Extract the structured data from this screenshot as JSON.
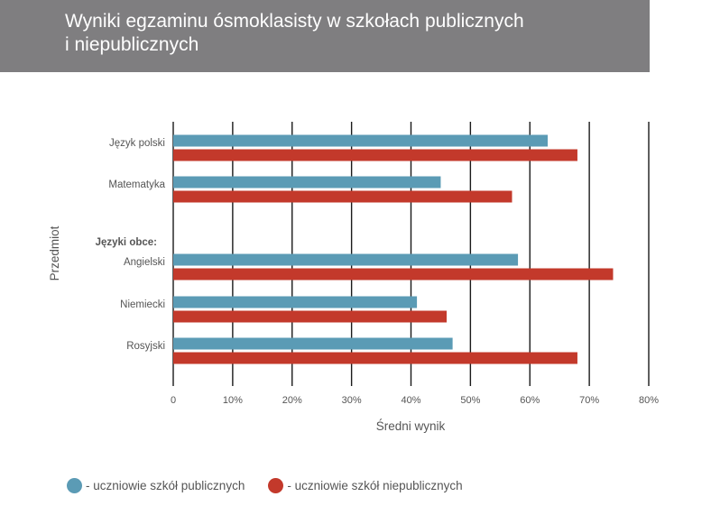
{
  "header": {
    "title_line1": "Wyniki egzaminu ósmoklasisty w szkołach publicznych",
    "title_line2": "i niepublicznych"
  },
  "colors": {
    "header_bg": "#7f7e80",
    "public": "#5b9bb5",
    "private": "#c3392b"
  },
  "legend": {
    "public_label": "- uczniowie szkół publicznych",
    "private_label": "- uczniowie szkół niepublicznych"
  },
  "chart_data": {
    "type": "bar",
    "orientation": "horizontal",
    "title": "",
    "xlabel": "Średni wynik",
    "ylabel": "Przedmiot",
    "xlim": [
      0,
      80
    ],
    "x_ticks": [
      "0",
      "10%",
      "20%",
      "30%",
      "40%",
      "50%",
      "60%",
      "70%",
      "80%"
    ],
    "grid": "vertical",
    "legend_position": "bottom-left",
    "rows": [
      {
        "label": "Język polski",
        "public": 63,
        "private": 68
      },
      {
        "label": "Matematyka",
        "public": 45,
        "private": 57
      },
      {
        "label": "Języki obce:",
        "group_header": true
      },
      {
        "label": "Angielski",
        "public": 58,
        "private": 74
      },
      {
        "label": "Niemiecki",
        "public": 41,
        "private": 46
      },
      {
        "label": "Rosyjski",
        "public": 47,
        "private": 68
      }
    ],
    "series": [
      {
        "name": "- uczniowie szkół publicznych",
        "key": "public"
      },
      {
        "name": "- uczniowie szkół niepublicznych",
        "key": "private"
      }
    ]
  }
}
